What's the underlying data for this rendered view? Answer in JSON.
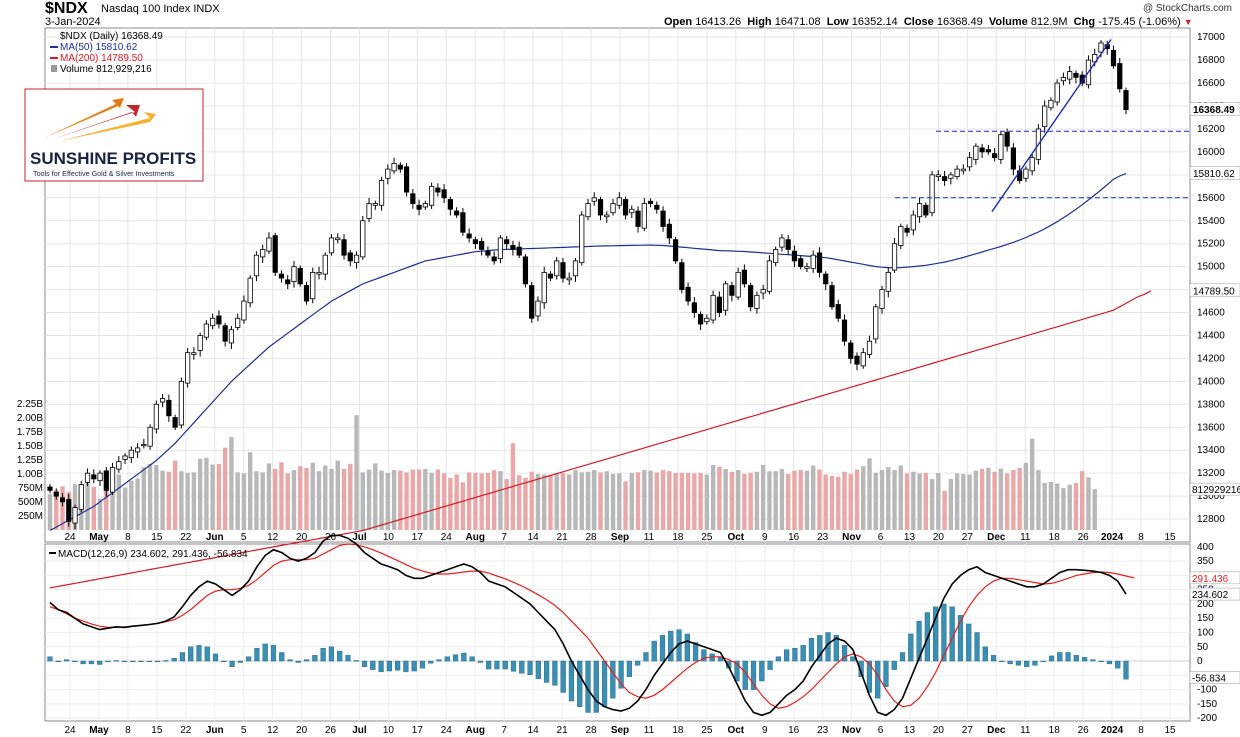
{
  "header": {
    "symbol": "$NDX",
    "index_name": "Nasdaq 100 Index",
    "exchange": "INDX",
    "date": "3-Jan-2024",
    "copyright": "@ StockCharts.com",
    "open_label": "Open",
    "open": "16413.26",
    "high_label": "High",
    "high": "16471.08",
    "low_label": "Low",
    "low": "16352.14",
    "close_label": "Close",
    "close": "16368.49",
    "volume_label": "Volume",
    "volume": "812.9M",
    "chg_label": "Chg",
    "chg": "-175.45 (-1.06%)"
  },
  "legend": {
    "price": "$NDX (Daily) 16368.49",
    "ma50": "MA(50) 15810.62",
    "ma200": "MA(200) 14789.50",
    "volume": "Volume 812,929,216"
  },
  "logo": {
    "name": "SUNSHINE PROFITS",
    "tagline": "Tools for Effective Gold & Silver Investments"
  },
  "colors": {
    "up": "#ffffff",
    "down": "#000000",
    "ma50": "#1f2f8f",
    "ma200": "#d01c2a",
    "vol_up": "#b8b8b8",
    "vol_down": "#e8a8a8",
    "macd": "#000000",
    "signal": "#e02020",
    "hist": "#3c8fb4",
    "support": "#1a2bb0",
    "trend": "#1a2bb0",
    "logo_text": "#1a2440",
    "logo_orange": "#e07b14",
    "logo_red": "#c0272d"
  },
  "chart_data": [
    {
      "type": "candlestick",
      "title": "$NDX Nasdaq 100 Index INDX",
      "y_ticks": [
        12800,
        13000,
        13200,
        13400,
        13600,
        13800,
        14000,
        14200,
        14400,
        14600,
        14800,
        15000,
        15200,
        15400,
        15600,
        15800,
        16000,
        16200,
        16400,
        16600,
        16800,
        17000
      ],
      "x_ticks": [
        "24",
        "May",
        "8",
        "15",
        "22",
        "Jun",
        "5",
        "12",
        "20",
        "26",
        "Jul",
        "10",
        "17",
        "24",
        "Aug",
        "7",
        "14",
        "21",
        "28",
        "Sep",
        "11",
        "18",
        "25",
        "Oct",
        "9",
        "16",
        "23",
        "Nov",
        "6",
        "13",
        "20",
        "27",
        "Dec",
        "11",
        "18",
        "26",
        "2024",
        "8",
        "15"
      ],
      "ylim": [
        12600,
        17080
      ],
      "price_labels": {
        "last": "16368.49",
        "ma50": "15810.62",
        "ma200": "14789.50"
      },
      "volume_ticks": [
        "250M",
        "500M",
        "750M",
        "1.00B",
        "1.25B",
        "1.50B",
        "1.75B",
        "2.00B",
        "2.25B"
      ],
      "volume_last_label": "812929216",
      "support_levels": [
        16180,
        15600
      ],
      "last_close": 16368.49,
      "ma50_last": 15810.62,
      "ma200_last": 14789.5,
      "closes": [
        13050,
        13000,
        12950,
        12780,
        12900,
        13100,
        13200,
        13150,
        13200,
        13050,
        13250,
        13300,
        13350,
        13400,
        13420,
        13450,
        13600,
        13800,
        13850,
        13700,
        13600,
        14000,
        14250,
        14250,
        14400,
        14500,
        14550,
        14500,
        14350,
        14450,
        14550,
        14700,
        14900,
        15100,
        15150,
        15250,
        14950,
        14900,
        14850,
        15000,
        14850,
        14700,
        14950,
        14950,
        15100,
        15250,
        15250,
        15100,
        15050,
        15100,
        15400,
        15550,
        15550,
        15750,
        15850,
        15900,
        15850,
        15650,
        15550,
        15500,
        15550,
        15700,
        15650,
        15600,
        15500,
        15450,
        15300,
        15250,
        15200,
        15150,
        15100,
        15050,
        15250,
        15200,
        15150,
        15100,
        14850,
        14550,
        14700,
        14950,
        14900,
        15050,
        14900,
        14900,
        15050,
        15450,
        15550,
        15600,
        15450,
        15450,
        15550,
        15600,
        15450,
        15500,
        15350,
        15550,
        15550,
        15500,
        15350,
        15250,
        15050,
        14800,
        14700,
        14600,
        14500,
        14550,
        14750,
        14600,
        14850,
        14750,
        14950,
        14850,
        14650,
        14750,
        14800,
        15050,
        15150,
        15250,
        15150,
        15050,
        15000,
        15000,
        15100,
        14950,
        14850,
        14650,
        14550,
        14350,
        14200,
        14150,
        14250,
        14350,
        14650,
        14800,
        14950,
        15200,
        15350,
        15300,
        15450,
        15550,
        15450,
        15800,
        15800,
        15750,
        15800,
        15850,
        15850,
        15950,
        16050,
        16000,
        16000,
        15950,
        16150,
        16050,
        15850,
        15750,
        15850,
        15950,
        16200,
        16400,
        16450,
        16600,
        16650,
        16700,
        16650,
        16600,
        16800,
        16850,
        16950,
        16900,
        16750,
        16550,
        16368.49
      ],
      "volume_millions": [
        640,
        710,
        780,
        680,
        820,
        690,
        900,
        770,
        560,
        750,
        840,
        990,
        760,
        880,
        920,
        1120,
        1180,
        1160,
        1060,
        1040,
        1240,
        1050,
        1020,
        1030,
        1270,
        1290,
        1170,
        1180,
        1470,
        1660,
        1030,
        1010,
        1390,
        1050,
        1030,
        1190,
        1090,
        1210,
        1010,
        1070,
        1140,
        1110,
        1200,
        1050,
        1150,
        1090,
        1240,
        1090,
        1180,
        2050,
        1030,
        1080,
        1190,
        1060,
        1020,
        1070,
        1060,
        1030,
        1080,
        1080,
        1090,
        1020,
        1080,
        1010,
        930,
        990,
        850,
        1030,
        1020,
        1010,
        1020,
        1070,
        1050,
        910,
        1550,
        980,
        930,
        1040,
        1000,
        990,
        990,
        1020,
        1020,
        990,
        1070,
        1030,
        1040,
        1070,
        1030,
        1050,
        1000,
        1010,
        870,
        1020,
        1030,
        1070,
        1060,
        1030,
        1070,
        1050,
        1020,
        1020,
        1020,
        1010,
        1020,
        990,
        1160,
        1130,
        1090,
        1040,
        1070,
        1000,
        1020,
        1040,
        1160,
        1050,
        1050,
        1090,
        1000,
        1060,
        1070,
        1060,
        1150,
        1080,
        990,
        970,
        950,
        1040,
        1000,
        1080,
        1140,
        1280,
        1020,
        1070,
        1120,
        1070,
        1150,
        1010,
        1040,
        1010,
        1020,
        910,
        1020,
        700,
        910,
        1010,
        1000,
        990,
        1060,
        1090,
        1110,
        1040,
        1100,
        1010,
        1070,
        1110,
        1200,
        1630,
        1070,
        840,
        860,
        830,
        750,
        810,
        840,
        1050,
        940,
        730
      ],
      "ma50": [
        12700,
        12730,
        12760,
        12790,
        12820,
        12850,
        12880,
        12910,
        12950,
        12990,
        13030,
        13070,
        13110,
        13150,
        13190,
        13230,
        13270,
        13310,
        13360,
        13410,
        13460,
        13520,
        13580,
        13640,
        13700,
        13760,
        13820,
        13880,
        13940,
        14000,
        14050,
        14100,
        14150,
        14200,
        14250,
        14300,
        14340,
        14380,
        14420,
        14460,
        14500,
        14540,
        14580,
        14620,
        14660,
        14700,
        14730,
        14760,
        14790,
        14820,
        14850,
        14870,
        14890,
        14910,
        14930,
        14950,
        14970,
        14990,
        15010,
        15030,
        15050,
        15060,
        15070,
        15080,
        15090,
        15100,
        15110,
        15120,
        15130,
        15135,
        15140,
        15145,
        15148,
        15150,
        15152,
        15154,
        15156,
        15158,
        15160,
        15162,
        15164,
        15166,
        15168,
        15170,
        15172,
        15174,
        15176,
        15178,
        15180,
        15181,
        15182,
        15183,
        15184,
        15185,
        15186,
        15187,
        15188,
        15186,
        15184,
        15180,
        15175,
        15170,
        15165,
        15160,
        15155,
        15150,
        15145,
        15140,
        15138,
        15136,
        15134,
        15132,
        15128,
        15124,
        15120,
        15116,
        15112,
        15108,
        15104,
        15100,
        15096,
        15092,
        15088,
        15084,
        15078,
        15070,
        15060,
        15050,
        15040,
        15030,
        15020,
        15010,
        15000,
        14995,
        14992,
        14990,
        14992,
        14996,
        15000,
        15006,
        15012,
        15020,
        15030,
        15040,
        15052,
        15066,
        15080,
        15096,
        15112,
        15128,
        15144,
        15160,
        15176,
        15194,
        15212,
        15232,
        15254,
        15278,
        15302,
        15330,
        15360,
        15392,
        15426,
        15462,
        15500,
        15540,
        15582,
        15624,
        15668,
        15714,
        15762,
        15790,
        15810.62
      ],
      "ma200": [
        12200,
        12210,
        12220,
        12230,
        12240,
        12250,
        12260,
        12270,
        12280,
        12290,
        12300,
        12310,
        12320,
        12330,
        12340,
        12350,
        12360,
        12370,
        12380,
        12390,
        12400,
        12410,
        12420,
        12430,
        12440,
        12450,
        12460,
        12470,
        12480,
        12490,
        12500,
        12510,
        12520,
        12530,
        12540,
        12550,
        12560,
        12570,
        12580,
        12590,
        12600,
        12610,
        12620,
        12630,
        12640,
        12650,
        12660,
        12670,
        12680,
        12690,
        12700,
        12716,
        12732,
        12748,
        12764,
        12780,
        12796,
        12812,
        12828,
        12844,
        12860,
        12876,
        12892,
        12908,
        12924,
        12940,
        12956,
        12972,
        12988,
        13004,
        13020,
        13036,
        13052,
        13068,
        13084,
        13100,
        13116,
        13132,
        13148,
        13164,
        13180,
        13196,
        13212,
        13228,
        13244,
        13260,
        13276,
        13292,
        13308,
        13324,
        13340,
        13356,
        13372,
        13388,
        13404,
        13420,
        13436,
        13452,
        13468,
        13484,
        13500,
        13516,
        13532,
        13548,
        13564,
        13580,
        13596,
        13612,
        13628,
        13644,
        13660,
        13676,
        13692,
        13708,
        13724,
        13740,
        13756,
        13772,
        13788,
        13804,
        13820,
        13836,
        13852,
        13868,
        13884,
        13900,
        13916,
        13932,
        13948,
        13964,
        13980,
        13996,
        14012,
        14028,
        14044,
        14060,
        14076,
        14092,
        14108,
        14124,
        14140,
        14156,
        14172,
        14188,
        14204,
        14220,
        14236,
        14252,
        14268,
        14284,
        14300,
        14316,
        14332,
        14348,
        14364,
        14380,
        14396,
        14412,
        14428,
        14444,
        14460,
        14476,
        14492,
        14508,
        14524,
        14540,
        14556,
        14572,
        14588,
        14604,
        14620,
        14650,
        14680,
        14710,
        14740,
        14760,
        14789.5
      ]
    },
    {
      "type": "line",
      "title": "MACD(12,26,9) 234.602, 291.436, -56.834",
      "series": [
        {
          "name": "MACD",
          "last": "234.602"
        },
        {
          "name": "Signal",
          "last": "291.436"
        },
        {
          "name": "Histogram",
          "last": "-56.834"
        }
      ],
      "y_ticks": [
        -200,
        -150,
        -100,
        -50,
        0,
        50,
        100,
        150,
        200,
        250,
        300,
        350,
        400
      ],
      "ylim": [
        -210,
        410
      ],
      "macd": [
        205,
        180,
        170,
        150,
        130,
        120,
        110,
        115,
        120,
        118,
        122,
        125,
        128,
        132,
        140,
        155,
        190,
        230,
        260,
        280,
        270,
        250,
        230,
        250,
        280,
        330,
        370,
        390,
        380,
        360,
        350,
        360,
        380,
        420,
        440,
        440,
        430,
        410,
        380,
        360,
        340,
        330,
        320,
        300,
        290,
        290,
        300,
        310,
        320,
        330,
        340,
        330,
        310,
        280,
        270,
        260,
        240,
        220,
        200,
        170,
        140,
        110,
        60,
        0,
        -50,
        -100,
        -140,
        -160,
        -170,
        -175,
        -165,
        -140,
        -100,
        -50,
        -10,
        30,
        60,
        70,
        60,
        50,
        40,
        30,
        -20,
        -80,
        -140,
        -180,
        -190,
        -180,
        -150,
        -120,
        -100,
        -70,
        -20,
        20,
        60,
        80,
        70,
        40,
        -40,
        -120,
        -180,
        -190,
        -170,
        -130,
        -60,
        10,
        80,
        150,
        220,
        270,
        300,
        320,
        330,
        310,
        300,
        290,
        280,
        270,
        260,
        260,
        270,
        290,
        310,
        320,
        320,
        318,
        315,
        310,
        300,
        280,
        234.602
      ],
      "signal": [
        190,
        180,
        165,
        150,
        140,
        130,
        122,
        118,
        118,
        120,
        122,
        125,
        128,
        132,
        138,
        145,
        160,
        180,
        205,
        230,
        245,
        250,
        250,
        255,
        265,
        285,
        310,
        335,
        350,
        355,
        355,
        355,
        360,
        375,
        390,
        405,
        410,
        408,
        400,
        390,
        378,
        365,
        352,
        338,
        325,
        315,
        308,
        305,
        305,
        308,
        312,
        315,
        315,
        308,
        298,
        288,
        276,
        263,
        248,
        232,
        215,
        195,
        170,
        140,
        110,
        80,
        40,
        0,
        -40,
        -80,
        -110,
        -125,
        -130,
        -120,
        -100,
        -75,
        -50,
        -25,
        -5,
        10,
        15,
        15,
        5,
        -10,
        -40,
        -80,
        -120,
        -150,
        -165,
        -160,
        -145,
        -125,
        -100,
        -70,
        -40,
        -10,
        15,
        25,
        15,
        -10,
        -50,
        -100,
        -140,
        -160,
        -155,
        -130,
        -90,
        -40,
        20,
        80,
        140,
        190,
        230,
        260,
        280,
        290,
        290,
        285,
        280,
        275,
        270,
        272,
        280,
        290,
        300,
        305,
        310,
        312,
        310,
        305,
        298,
        291.436
      ]
    }
  ]
}
